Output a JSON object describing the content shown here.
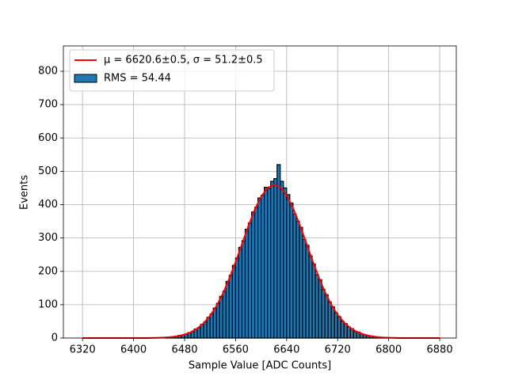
{
  "chart_data": {
    "type": "histogram",
    "xlabel": "Sample Value [ADC Counts]",
    "ylabel": "Events",
    "xlim": [
      6290,
      6906
    ],
    "ylim": [
      0,
      876
    ],
    "xticks": [
      6320,
      6400,
      6480,
      6560,
      6640,
      6720,
      6800,
      6880
    ],
    "yticks": [
      0,
      100,
      200,
      300,
      400,
      500,
      600,
      700,
      800
    ],
    "grid": true,
    "legend": "upper left",
    "bins": [
      6450,
      6455,
      6460,
      6465,
      6470,
      6475,
      6480,
      6485,
      6490,
      6495,
      6500,
      6505,
      6510,
      6515,
      6520,
      6525,
      6530,
      6535,
      6540,
      6545,
      6550,
      6555,
      6560,
      6565,
      6570,
      6575,
      6580,
      6585,
      6590,
      6595,
      6600,
      6605,
      6610,
      6615,
      6620,
      6625,
      6630,
      6635,
      6640,
      6645,
      6650,
      6655,
      6660,
      6665,
      6670,
      6675,
      6680,
      6685,
      6690,
      6695,
      6700,
      6705,
      6710,
      6715,
      6720,
      6725,
      6730,
      6735,
      6740,
      6745,
      6750,
      6755,
      6760,
      6765,
      6770,
      6775,
      6780,
      6785,
      6790,
      6795,
      6800
    ],
    "series": [
      {
        "name": "RMS = 54.44",
        "color": "#1f77b4",
        "values": [
          2,
          3,
          4,
          5,
          8,
          9,
          12,
          16,
          19,
          27,
          31,
          41,
          48,
          62,
          72,
          90,
          104,
          125,
          140,
          170,
          188,
          218,
          240,
          272,
          292,
          326,
          345,
          378,
          392,
          420,
          428,
          452,
          448,
          470,
          478,
          520,
          470,
          450,
          430,
          405,
          372,
          350,
          332,
          296,
          278,
          246,
          222,
          190,
          175,
          146,
          130,
          108,
          94,
          75,
          64,
          50,
          43,
          33,
          28,
          20,
          18,
          12,
          10,
          7,
          6,
          4,
          3,
          2,
          2,
          1
        ]
      }
    ],
    "fit": {
      "type": "line",
      "name": "μ = 6620.6±0.5, σ = 51.2±0.5",
      "color": "#ff0000",
      "x": [
        6320,
        6340,
        6360,
        6380,
        6400,
        6420,
        6440,
        6450,
        6460,
        6470,
        6480,
        6490,
        6500,
        6510,
        6520,
        6530,
        6540,
        6550,
        6560,
        6570,
        6580,
        6590,
        6600,
        6610,
        6620,
        6630,
        6640,
        6650,
        6660,
        6670,
        6680,
        6690,
        6700,
        6710,
        6720,
        6730,
        6740,
        6750,
        6760,
        6770,
        6780,
        6790,
        6800,
        6820,
        6840,
        6860,
        6880
      ],
      "values": [
        0,
        0,
        0,
        0,
        0,
        0,
        0.9,
        1.8,
        3.4,
        6.1,
        10.6,
        17.8,
        28.7,
        44.6,
        66.8,
        96,
        133,
        178,
        228,
        282,
        336,
        385,
        424,
        450,
        460,
        452,
        428,
        390,
        342,
        289,
        235,
        184,
        138,
        100,
        70,
        47,
        30,
        18.9,
        11.3,
        6.5,
        3.6,
        1.9,
        1,
        0,
        0,
        0,
        0
      ]
    }
  }
}
